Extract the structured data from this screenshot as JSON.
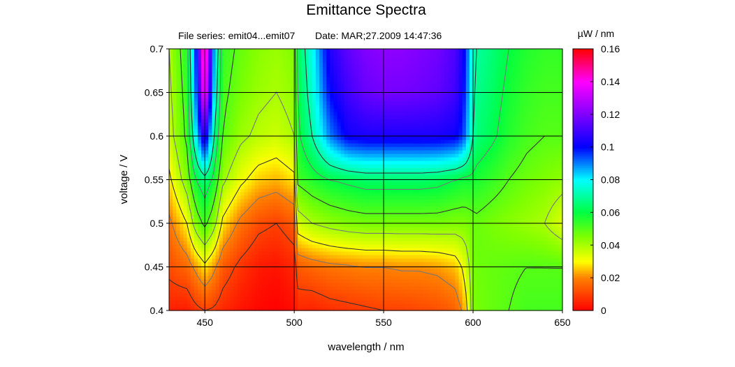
{
  "chart_data": {
    "type": "heatmap",
    "title": "Emittance Spectra",
    "subtitle_series": "File series: emit04...emit07",
    "subtitle_date": "Date: MAR;27.2009 14:47:36",
    "xlabel": "wavelength / nm",
    "ylabel": "voltage / V",
    "colorbar_label": "µW / nm",
    "xlim": [
      430,
      650
    ],
    "ylim": [
      0.4,
      0.7
    ],
    "clim": [
      0,
      0.16
    ],
    "x_ticks": [
      450,
      500,
      550,
      600,
      650
    ],
    "y_ticks": [
      0.4,
      0.45,
      0.5,
      0.55,
      0.6,
      0.65,
      0.7
    ],
    "y_tick_labels": [
      "0.4",
      "0.45",
      "0.5",
      "0.55",
      "0.6",
      "0.65",
      "0.7"
    ],
    "colorbar_ticks": [
      0,
      0.02,
      0.04,
      0.06,
      0.08,
      0.1,
      0.12,
      0.14,
      0.16
    ],
    "colorbar_tick_labels": [
      "0",
      "0.02",
      "0.04",
      "0.06",
      "0.08",
      "0.1",
      "0.12",
      "0.14",
      "0.16"
    ],
    "grid": true,
    "colormap": [
      {
        "value": 0.0,
        "color": "#ff0000"
      },
      {
        "value": 0.02,
        "color": "#ff8000"
      },
      {
        "value": 0.03,
        "color": "#ffff00"
      },
      {
        "value": 0.045,
        "color": "#80ff00"
      },
      {
        "value": 0.06,
        "color": "#00ff40"
      },
      {
        "value": 0.08,
        "color": "#00ffff"
      },
      {
        "value": 0.1,
        "color": "#0000ff"
      },
      {
        "value": 0.12,
        "color": "#8000ff"
      },
      {
        "value": 0.14,
        "color": "#ff00ff"
      },
      {
        "value": 0.16,
        "color": "#ff0000"
      }
    ],
    "grid_x": [
      430,
      440,
      445,
      450,
      455,
      460,
      470,
      480,
      490,
      500,
      502,
      510,
      520,
      530,
      540,
      550,
      560,
      570,
      580,
      590,
      595,
      600,
      602,
      610,
      620,
      630,
      640,
      650
    ],
    "grid_y": [
      0.4,
      0.45,
      0.5,
      0.55,
      0.6,
      0.65,
      0.7
    ],
    "values": [
      [
        0.005,
        0.004,
        0.008,
        0.01,
        0.009,
        0.006,
        0.003,
        0.001,
        0.0,
        0.002,
        0.006,
        0.005,
        0.007,
        0.008,
        0.009,
        0.01,
        0.01,
        0.011,
        0.012,
        0.015,
        0.022,
        0.045,
        0.046,
        0.048,
        0.05,
        0.052,
        0.052,
        0.052
      ],
      [
        0.012,
        0.016,
        0.022,
        0.028,
        0.022,
        0.014,
        0.008,
        0.004,
        0.003,
        0.006,
        0.014,
        0.016,
        0.018,
        0.019,
        0.02,
        0.02,
        0.021,
        0.021,
        0.022,
        0.025,
        0.032,
        0.046,
        0.047,
        0.048,
        0.049,
        0.05,
        0.05,
        0.05
      ],
      [
        0.018,
        0.03,
        0.045,
        0.052,
        0.044,
        0.028,
        0.018,
        0.012,
        0.01,
        0.014,
        0.035,
        0.04,
        0.043,
        0.045,
        0.046,
        0.046,
        0.046,
        0.046,
        0.046,
        0.045,
        0.045,
        0.047,
        0.048,
        0.046,
        0.044,
        0.042,
        0.04,
        0.034
      ],
      [
        0.028,
        0.045,
        0.06,
        0.066,
        0.058,
        0.042,
        0.032,
        0.026,
        0.024,
        0.028,
        0.052,
        0.056,
        0.06,
        0.062,
        0.064,
        0.064,
        0.064,
        0.064,
        0.063,
        0.06,
        0.058,
        0.058,
        0.057,
        0.054,
        0.05,
        0.047,
        0.045,
        0.043
      ],
      [
        0.036,
        0.052,
        0.08,
        0.11,
        0.07,
        0.05,
        0.042,
        0.038,
        0.036,
        0.04,
        0.058,
        0.07,
        0.09,
        0.102,
        0.104,
        0.104,
        0.104,
        0.104,
        0.104,
        0.102,
        0.095,
        0.07,
        0.066,
        0.062,
        0.056,
        0.052,
        0.05,
        0.05
      ],
      [
        0.038,
        0.054,
        0.09,
        0.145,
        0.08,
        0.052,
        0.046,
        0.042,
        0.04,
        0.043,
        0.06,
        0.075,
        0.1,
        0.11,
        0.116,
        0.118,
        0.118,
        0.117,
        0.115,
        0.11,
        0.1,
        0.072,
        0.068,
        0.064,
        0.058,
        0.054,
        0.052,
        0.052
      ],
      [
        0.04,
        0.056,
        0.095,
        0.155,
        0.085,
        0.054,
        0.048,
        0.044,
        0.042,
        0.045,
        0.062,
        0.078,
        0.105,
        0.115,
        0.12,
        0.122,
        0.122,
        0.12,
        0.118,
        0.112,
        0.102,
        0.074,
        0.07,
        0.066,
        0.06,
        0.056,
        0.054,
        0.054
      ]
    ],
    "contour_levels": [
      0.01,
      0.02,
      0.03,
      0.04,
      0.05,
      0.06,
      0.07
    ],
    "contour_colors": {
      "dark": "#333333",
      "light": "#777777"
    }
  }
}
